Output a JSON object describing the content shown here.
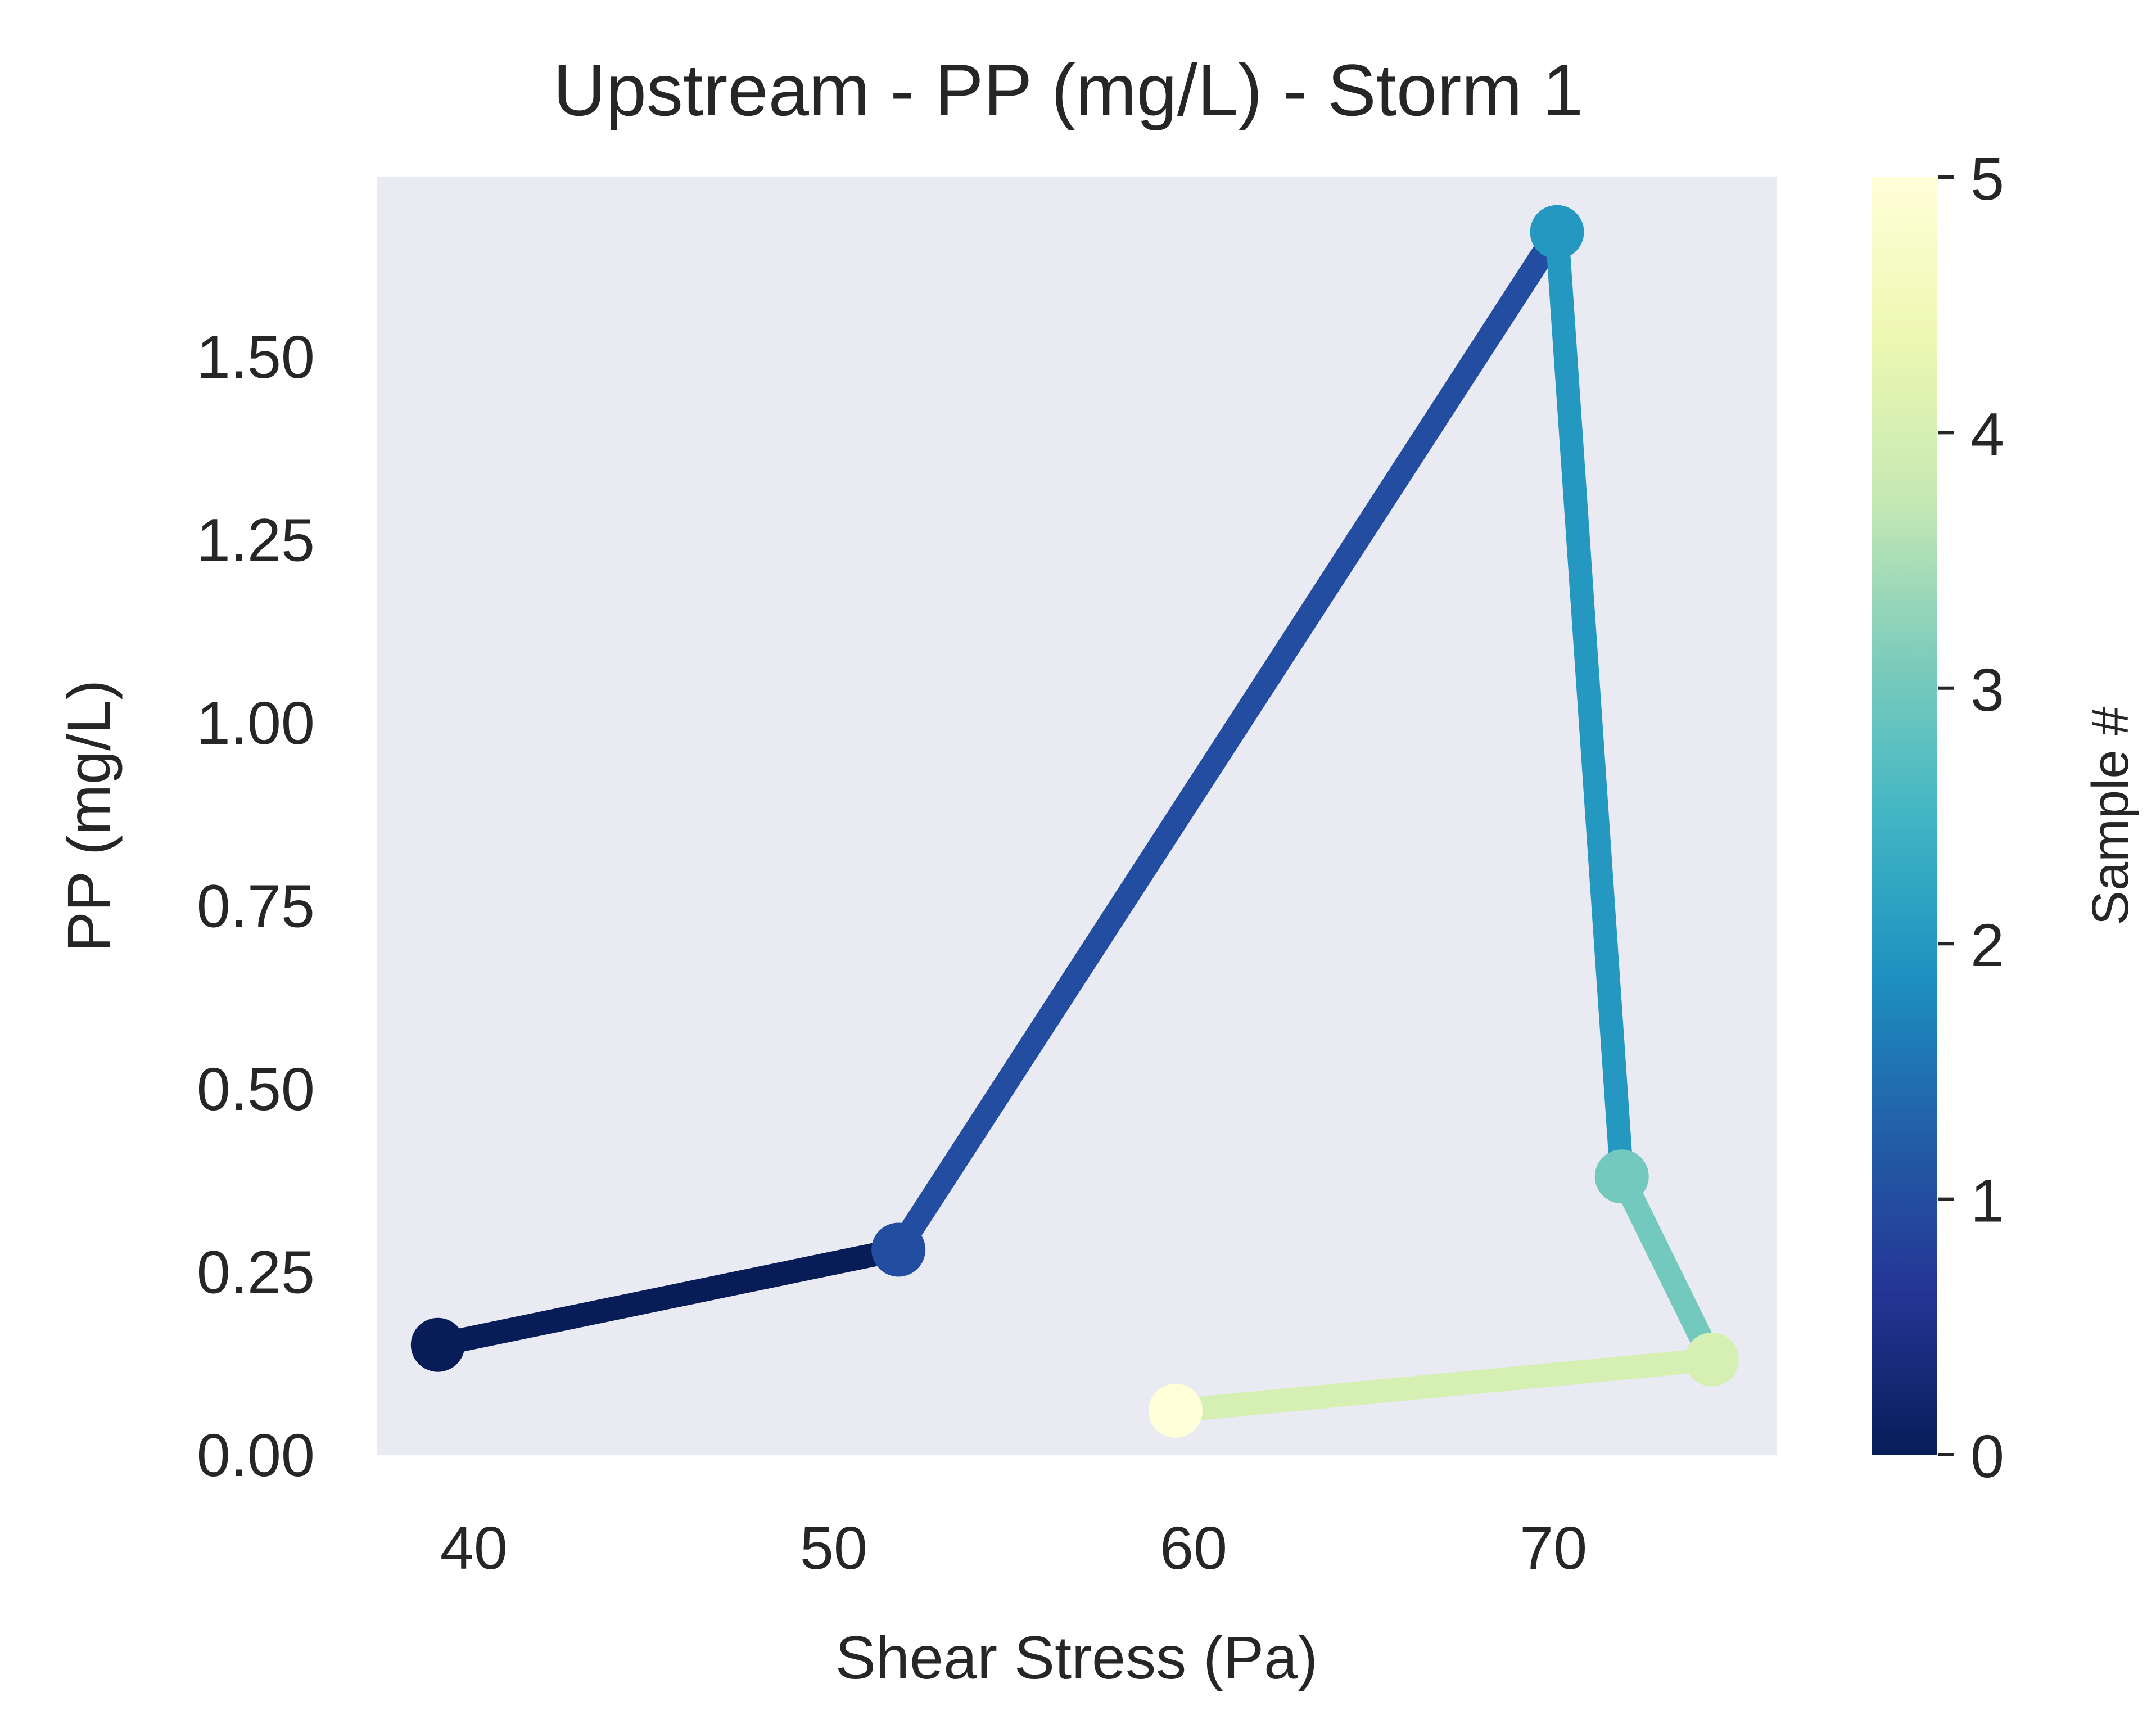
{
  "chart_data": {
    "type": "line",
    "title": "Upstream - PP (mg/L) - Storm 1",
    "xlabel": "Shear Stress (Pa)",
    "ylabel": "PP (mg/L)",
    "xlim": [
      37.3,
      76.2
    ],
    "ylim": [
      0,
      1.745
    ],
    "x_ticks": [
      40,
      50,
      60,
      70
    ],
    "x_tick_labels": [
      "40",
      "50",
      "60",
      "70"
    ],
    "y_ticks": [
      0,
      0.25,
      0.5,
      0.75,
      1.0,
      1.25,
      1.5
    ],
    "y_tick_labels": [
      "0.00",
      "0.25",
      "0.50",
      "0.75",
      "1.00",
      "1.25",
      "1.50"
    ],
    "grid": false,
    "background_color": "#eaeaf2",
    "colormap": "YlGnBu_r",
    "points": [
      {
        "sample": 0,
        "x": 39.0,
        "y": 0.15
      },
      {
        "sample": 1,
        "x": 51.8,
        "y": 0.28
      },
      {
        "sample": 2,
        "x": 70.1,
        "y": 1.67
      },
      {
        "sample": 3,
        "x": 71.9,
        "y": 0.38
      },
      {
        "sample": 4,
        "x": 74.4,
        "y": 0.13
      },
      {
        "sample": 5,
        "x": 59.5,
        "y": 0.06
      }
    ],
    "segment_colors": [
      "#081d58",
      "#234da0",
      "#2498c1",
      "#73c9bd",
      "#d6efb3"
    ],
    "marker_colors": [
      "#081d58",
      "#234da0",
      "#2498c1",
      "#73c9bd",
      "#d6efb3",
      "#ffffd9"
    ],
    "colorbar": {
      "label": "Sample #",
      "range": [
        0,
        5
      ],
      "ticks": [
        0,
        1,
        2,
        3,
        4,
        5
      ],
      "tick_labels": [
        "0",
        "1",
        "2",
        "3",
        "4",
        "5"
      ],
      "gradient": [
        "#081d58",
        "#253494",
        "#225ea8",
        "#1d91c0",
        "#41b6c4",
        "#7fcdbb",
        "#c7e9b4",
        "#edf8b1",
        "#ffffd9"
      ]
    }
  }
}
